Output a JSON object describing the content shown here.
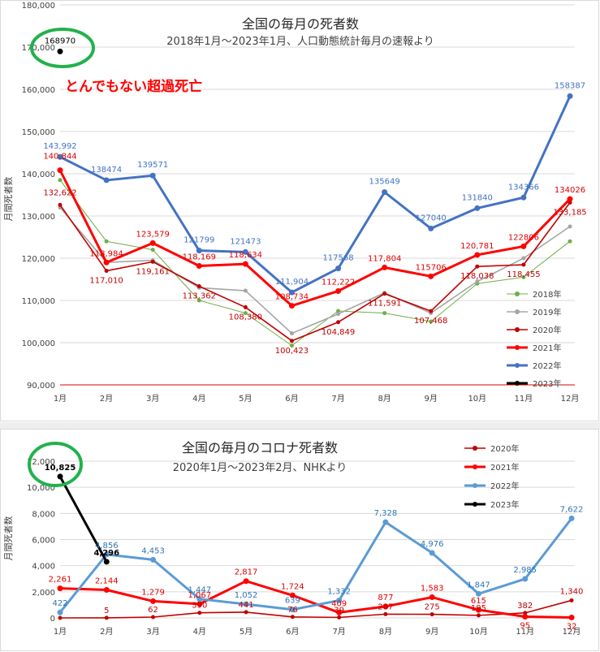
{
  "chart_data": [
    {
      "type": "line",
      "title": "全国の毎月の死者数",
      "subtitle": "2018年1月～2023年1月、人口動態統計毎月の速報より",
      "annotation": "とんでもない超過死亡",
      "ylabel": "月間死者数",
      "xlabel": "",
      "categories": [
        "1月",
        "2月",
        "3月",
        "4月",
        "5月",
        "6月",
        "7月",
        "8月",
        "9月",
        "10月",
        "11月",
        "12月"
      ],
      "yticks": [
        "90,000",
        "100,000",
        "110,000",
        "120,000",
        "130,000",
        "140,000",
        "150,000",
        "160,000",
        "170,000",
        "180,000"
      ],
      "ylim": [
        90000,
        180000
      ],
      "series": [
        {
          "name": "2018年",
          "color": "#70ad47",
          "width": 1,
          "values": [
            138500,
            124000,
            122000,
            110000,
            107000,
            99300,
            107500,
            107000,
            105000,
            114000,
            115500,
            124000
          ],
          "labels": []
        },
        {
          "name": "2019年",
          "color": "#a5a5a5",
          "width": 1.6,
          "values": [
            132000,
            119000,
            119500,
            113000,
            112300,
            102200,
            106800,
            111800,
            107000,
            114500,
            120000,
            127500
          ],
          "labels": []
        },
        {
          "name": "2020年",
          "color": "#c00000",
          "width": 1.6,
          "values": [
            132622,
            117010,
            119161,
            113362,
            108380,
            100423,
            104849,
            111591,
            107468,
            118038,
            118455,
            133185
          ],
          "labels": [
            "132,622",
            "117,010",
            "119,161",
            "113,362",
            "108,380",
            "100,423",
            "104,849",
            "111,591",
            "107,468",
            "118,038",
            "118,455",
            "133,185"
          ]
        },
        {
          "name": "2021年",
          "color": "#ff0000",
          "width": 3,
          "values": [
            140844,
            118984,
            123579,
            118169,
            118634,
            108734,
            112222,
            117804,
            115706,
            120781,
            122806,
            134026
          ],
          "labels": [
            "140,844",
            "118,984",
            "123,579",
            "118,169",
            "118,634",
            "108,734",
            "112,222",
            "117,804",
            "115706",
            "120,781",
            "122806",
            "134026"
          ]
        },
        {
          "name": "2022年",
          "color": "#4472c4",
          "width": 3,
          "values": [
            143992,
            138474,
            139571,
            121799,
            121473,
            111904,
            117568,
            135649,
            127040,
            131840,
            134366,
            158387
          ],
          "labels": [
            "143,992",
            "138474",
            "139571",
            "121799",
            "121473",
            "111,904",
            "117568",
            "135649",
            "127040",
            "131840",
            "134366",
            "158387"
          ]
        },
        {
          "name": "2023年",
          "color": "#000000",
          "width": 3,
          "values": [
            168970,
            null,
            null,
            null,
            null,
            null,
            null,
            null,
            null,
            null,
            null,
            null
          ],
          "labels": [
            "168970"
          ]
        }
      ]
    },
    {
      "type": "line",
      "title": "全国の毎月のコロナ死者数",
      "subtitle": "2020年1月～2023年2月、NHKより",
      "ylabel": "月間死者数",
      "xlabel": "",
      "categories": [
        "1月",
        "2月",
        "3月",
        "4月",
        "5月",
        "6月",
        "7月",
        "8月",
        "9月",
        "10月",
        "11月",
        "12月"
      ],
      "yticks": [
        "0",
        "2,000",
        "4,000",
        "6,000",
        "8,000",
        "10,000",
        "12,000"
      ],
      "ylim": [
        0,
        12000
      ],
      "series": [
        {
          "name": "2020年",
          "color": "#c00000",
          "width": 1.6,
          "values": [
            0,
            5,
            62,
            390,
            441,
            76,
            39,
            287,
            275,
            195,
            382,
            1340
          ],
          "labels": [
            "",
            "5",
            "62",
            "390",
            "441",
            "76",
            "39",
            "287",
            "275",
            "195",
            "382",
            "1,340"
          ]
        },
        {
          "name": "2021年",
          "color": "#ff0000",
          "width": 3,
          "values": [
            2261,
            2144,
            1279,
            1067,
            2817,
            1724,
            409,
            877,
            1583,
            615,
            95,
            32
          ],
          "labels": [
            "2,261",
            "2,144",
            "1,279",
            "1,067",
            "2,817",
            "1,724",
            "409",
            "877",
            "1,583",
            "615",
            "95",
            "32"
          ]
        },
        {
          "name": "2022年",
          "color": "#5b9bd5",
          "width": 3,
          "values": [
            422,
            4856,
            4453,
            1447,
            1052,
            639,
            1332,
            7328,
            4976,
            1847,
            2985,
            7622
          ],
          "labels": [
            "422",
            "4,856",
            "4,453",
            "1,447",
            "1,052",
            "639",
            "1,332",
            "7,328",
            "4,976",
            "1,847",
            "2,985",
            "7,622"
          ]
        },
        {
          "name": "2023年",
          "color": "#000000",
          "width": 3,
          "values": [
            10825,
            4296,
            null,
            null,
            null,
            null,
            null,
            null,
            null,
            null,
            null,
            null
          ],
          "labels": [
            "10,825",
            "4,296"
          ]
        }
      ]
    }
  ]
}
